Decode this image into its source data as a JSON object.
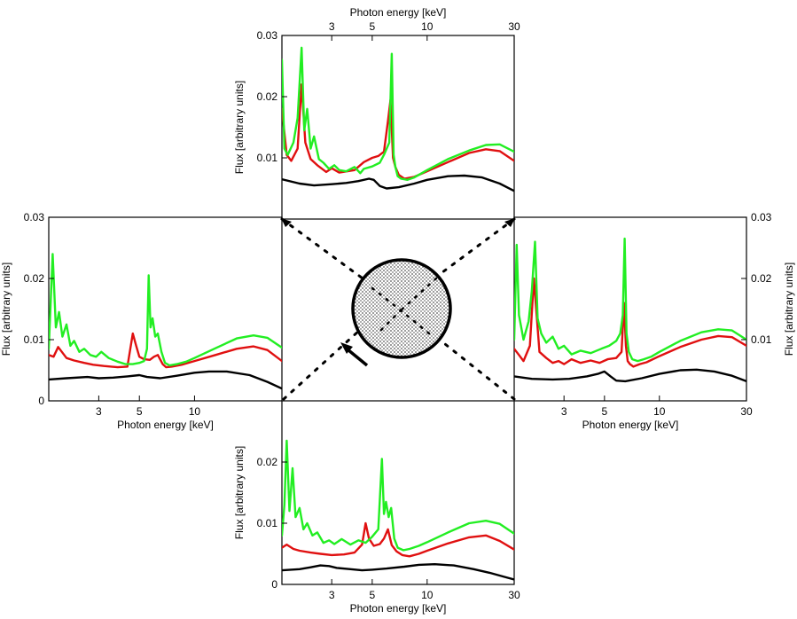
{
  "chart_data": [
    {
      "id": "top",
      "type": "line",
      "xlabel": "Photon energy [keV]",
      "ylabel": "Flux [arbitrary units]",
      "xscale": "log",
      "xlim": [
        1.6,
        30
      ],
      "ylim": [
        0,
        0.03
      ],
      "xticks": [
        3,
        5,
        10,
        30
      ],
      "xtick_labels": [
        "3",
        "5",
        "10",
        "30"
      ],
      "yticks": [
        0.01,
        0.02,
        0.03
      ],
      "ytick_labels": [
        "0.01",
        "0.02",
        "0.03"
      ],
      "xaxis_side": "top",
      "yaxis_side": "left",
      "series": [
        {
          "name": "black",
          "color": "#000000",
          "x": [
            1.6,
            2.0,
            2.4,
            3.0,
            3.6,
            4.2,
            4.8,
            5.1,
            5.5,
            6.0,
            7.0,
            8.5,
            10,
            13,
            16,
            20,
            25,
            30
          ],
          "y": [
            0.0065,
            0.0058,
            0.0055,
            0.0057,
            0.0059,
            0.0062,
            0.0066,
            0.0064,
            0.0054,
            0.005,
            0.0052,
            0.0058,
            0.0064,
            0.007,
            0.0071,
            0.0068,
            0.0058,
            0.0046
          ]
        },
        {
          "name": "red",
          "color": "#e01010",
          "x": [
            1.6,
            1.7,
            1.8,
            1.95,
            2.05,
            2.15,
            2.3,
            2.5,
            2.8,
            3.0,
            3.3,
            4.0,
            4.5,
            5.0,
            5.4,
            5.8,
            6.1,
            6.3,
            6.5,
            6.7,
            7.0,
            7.5,
            8.5,
            10,
            13,
            17,
            21,
            25,
            30
          ],
          "y": [
            0.018,
            0.0105,
            0.0095,
            0.0115,
            0.022,
            0.0125,
            0.0098,
            0.0088,
            0.0077,
            0.0083,
            0.0076,
            0.008,
            0.0093,
            0.01,
            0.0103,
            0.011,
            0.016,
            0.0195,
            0.01,
            0.0085,
            0.0072,
            0.0066,
            0.0069,
            0.0078,
            0.0093,
            0.0108,
            0.0114,
            0.0111,
            0.0095
          ]
        },
        {
          "name": "green",
          "color": "#22ee22",
          "x": [
            1.6,
            1.65,
            1.72,
            1.85,
            1.95,
            2.05,
            2.12,
            2.2,
            2.3,
            2.4,
            2.55,
            2.7,
            2.9,
            3.1,
            3.3,
            3.6,
            4.0,
            4.3,
            4.5,
            5.0,
            5.5,
            5.8,
            6.2,
            6.4,
            6.55,
            6.7,
            6.9,
            7.2,
            7.8,
            8.5,
            10,
            13,
            17,
            21,
            25,
            30
          ],
          "y": [
            0.026,
            0.0115,
            0.0105,
            0.0125,
            0.0165,
            0.028,
            0.0145,
            0.018,
            0.0115,
            0.0135,
            0.0098,
            0.0092,
            0.0082,
            0.0088,
            0.008,
            0.0078,
            0.0085,
            0.0075,
            0.0082,
            0.0086,
            0.0092,
            0.0105,
            0.0125,
            0.027,
            0.0105,
            0.0085,
            0.007,
            0.0066,
            0.0064,
            0.0068,
            0.008,
            0.0098,
            0.0112,
            0.0121,
            0.0122,
            0.011
          ]
        }
      ]
    },
    {
      "id": "left",
      "type": "line",
      "xlabel": "Photon energy [keV]",
      "ylabel": "Flux [arbitrary units]",
      "xscale": "log",
      "xlim": [
        1.6,
        30
      ],
      "ylim": [
        0,
        0.03
      ],
      "xticks": [
        3,
        5,
        10
      ],
      "xtick_labels": [
        "3",
        "5",
        "10"
      ],
      "yticks": [
        0,
        0.01,
        0.02,
        0.03
      ],
      "ytick_labels": [
        "0",
        "0.01",
        "0.02",
        "0.03"
      ],
      "xaxis_side": "bottom",
      "yaxis_side": "left",
      "series": [
        {
          "name": "black",
          "color": "#000000",
          "x": [
            1.6,
            2.0,
            2.6,
            3.0,
            3.6,
            4.3,
            5.0,
            5.5,
            6.5,
            8.0,
            10,
            12,
            15,
            20,
            25,
            30
          ],
          "y": [
            0.0035,
            0.0037,
            0.0039,
            0.0037,
            0.0038,
            0.004,
            0.0042,
            0.0039,
            0.0037,
            0.0041,
            0.0046,
            0.0048,
            0.0048,
            0.0042,
            0.0031,
            0.002
          ]
        },
        {
          "name": "red",
          "color": "#e01010",
          "x": [
            1.6,
            1.7,
            1.8,
            2.0,
            2.2,
            2.5,
            2.8,
            3.2,
            3.8,
            4.3,
            4.6,
            4.8,
            5.0,
            5.3,
            5.7,
            6.0,
            6.3,
            6.7,
            7.0,
            7.5,
            8.5,
            10,
            13,
            17,
            21,
            25,
            30
          ],
          "y": [
            0.0075,
            0.0072,
            0.0088,
            0.007,
            0.0066,
            0.0062,
            0.0059,
            0.0057,
            0.0055,
            0.0056,
            0.011,
            0.009,
            0.0072,
            0.0068,
            0.0067,
            0.0072,
            0.0075,
            0.006,
            0.0055,
            0.0056,
            0.0059,
            0.0065,
            0.0075,
            0.0085,
            0.0089,
            0.0083,
            0.0065
          ]
        },
        {
          "name": "green",
          "color": "#22ee22",
          "x": [
            1.6,
            1.68,
            1.75,
            1.82,
            1.9,
            2.0,
            2.1,
            2.2,
            2.35,
            2.5,
            2.7,
            2.9,
            3.1,
            3.4,
            3.8,
            4.2,
            4.6,
            5.0,
            5.3,
            5.5,
            5.62,
            5.75,
            5.9,
            6.1,
            6.3,
            6.6,
            6.9,
            7.3,
            8.0,
            9.0,
            10,
            13,
            17,
            21,
            25,
            30
          ],
          "y": [
            0.0085,
            0.024,
            0.012,
            0.0145,
            0.0105,
            0.0125,
            0.009,
            0.0098,
            0.008,
            0.0085,
            0.0075,
            0.0072,
            0.008,
            0.007,
            0.0064,
            0.006,
            0.006,
            0.0062,
            0.0065,
            0.0085,
            0.0205,
            0.012,
            0.0135,
            0.0105,
            0.011,
            0.008,
            0.0062,
            0.0058,
            0.006,
            0.0064,
            0.007,
            0.0086,
            0.0102,
            0.0107,
            0.0103,
            0.0087
          ]
        }
      ]
    },
    {
      "id": "right",
      "type": "line",
      "xlabel": "Photon energy [keV]",
      "ylabel": "Flux [arbitrary units]",
      "xscale": "log",
      "xlim": [
        1.6,
        30
      ],
      "ylim": [
        0,
        0.03
      ],
      "xticks": [
        3,
        5,
        10,
        30
      ],
      "xtick_labels": [
        "3",
        "5",
        "10",
        "30"
      ],
      "yticks": [
        0.01,
        0.02,
        0.03
      ],
      "ytick_labels": [
        "0.01",
        "0.02",
        "0.03"
      ],
      "xaxis_side": "bottom",
      "yaxis_side": "right",
      "series": [
        {
          "name": "black",
          "color": "#000000",
          "x": [
            1.6,
            2.0,
            2.6,
            3.2,
            4.0,
            4.6,
            5.0,
            5.4,
            5.8,
            6.5,
            8.0,
            10,
            13,
            16,
            20,
            25,
            30
          ],
          "y": [
            0.004,
            0.0036,
            0.0035,
            0.0036,
            0.004,
            0.0044,
            0.0048,
            0.004,
            0.0033,
            0.0032,
            0.0037,
            0.0044,
            0.005,
            0.0051,
            0.0048,
            0.0041,
            0.0032
          ]
        },
        {
          "name": "red",
          "color": "#e01010",
          "x": [
            1.6,
            1.7,
            1.8,
            1.95,
            2.05,
            2.2,
            2.4,
            2.6,
            2.8,
            3.0,
            3.3,
            3.7,
            4.2,
            4.7,
            5.2,
            5.8,
            6.2,
            6.4,
            6.55,
            6.7,
            6.9,
            7.2,
            7.8,
            8.5,
            10,
            13,
            17,
            21,
            25,
            30
          ],
          "y": [
            0.0085,
            0.0075,
            0.0065,
            0.009,
            0.02,
            0.008,
            0.007,
            0.0062,
            0.0065,
            0.006,
            0.0068,
            0.0062,
            0.0066,
            0.0062,
            0.0068,
            0.007,
            0.008,
            0.016,
            0.009,
            0.0065,
            0.006,
            0.0056,
            0.006,
            0.0063,
            0.0073,
            0.0088,
            0.01,
            0.0106,
            0.0104,
            0.009
          ]
        },
        {
          "name": "green",
          "color": "#22ee22",
          "x": [
            1.6,
            1.65,
            1.7,
            1.8,
            1.92,
            2.0,
            2.08,
            2.15,
            2.25,
            2.4,
            2.6,
            2.8,
            3.0,
            3.3,
            3.7,
            4.2,
            4.8,
            5.3,
            5.8,
            6.1,
            6.3,
            6.45,
            6.6,
            6.8,
            7.1,
            7.6,
            8.2,
            9.0,
            10,
            13,
            17,
            21,
            25,
            30
          ],
          "y": [
            0.01,
            0.0255,
            0.014,
            0.01,
            0.013,
            0.018,
            0.026,
            0.0135,
            0.011,
            0.0095,
            0.0105,
            0.0085,
            0.009,
            0.0076,
            0.0082,
            0.0078,
            0.0085,
            0.009,
            0.0098,
            0.011,
            0.014,
            0.0265,
            0.011,
            0.008,
            0.0068,
            0.0065,
            0.0068,
            0.0072,
            0.008,
            0.0098,
            0.0112,
            0.0117,
            0.0115,
            0.01
          ]
        }
      ]
    },
    {
      "id": "bottom",
      "type": "line",
      "xlabel": "Photon energy [keV]",
      "ylabel": "Flux [arbitrary units]",
      "xscale": "log",
      "xlim": [
        1.6,
        30
      ],
      "ylim": [
        0,
        0.03
      ],
      "xticks": [
        3,
        5,
        10,
        30
      ],
      "xtick_labels": [
        "3",
        "5",
        "10",
        "30"
      ],
      "yticks": [
        0,
        0.01,
        0.02
      ],
      "ytick_labels": [
        "0",
        "0.01",
        "0.02"
      ],
      "xaxis_side": "bottom",
      "yaxis_side": "left",
      "series": [
        {
          "name": "black",
          "color": "#000000",
          "x": [
            1.6,
            2.0,
            2.3,
            2.6,
            2.9,
            3.2,
            3.8,
            4.4,
            5.0,
            6.0,
            7.5,
            9.0,
            11,
            14,
            18,
            22,
            26,
            30
          ],
          "y": [
            0.0023,
            0.0025,
            0.0028,
            0.0031,
            0.003,
            0.0027,
            0.0025,
            0.0023,
            0.0024,
            0.0026,
            0.0029,
            0.0032,
            0.0033,
            0.0031,
            0.0025,
            0.0019,
            0.0013,
            0.0008
          ]
        },
        {
          "name": "red",
          "color": "#e01010",
          "x": [
            1.6,
            1.7,
            1.85,
            2.0,
            2.3,
            2.6,
            3.0,
            3.5,
            4.0,
            4.4,
            4.6,
            4.8,
            5.1,
            5.5,
            5.8,
            6.1,
            6.4,
            6.8,
            7.3,
            8.0,
            9.0,
            10,
            13,
            17,
            21,
            25,
            30
          ],
          "y": [
            0.006,
            0.0065,
            0.0058,
            0.0055,
            0.0052,
            0.005,
            0.0048,
            0.0049,
            0.0052,
            0.0065,
            0.01,
            0.0075,
            0.0063,
            0.0066,
            0.0075,
            0.009,
            0.0064,
            0.0054,
            0.0048,
            0.0046,
            0.005,
            0.0055,
            0.0067,
            0.0077,
            0.008,
            0.0071,
            0.0057
          ]
        },
        {
          "name": "green",
          "color": "#22ee22",
          "x": [
            1.6,
            1.65,
            1.7,
            1.76,
            1.83,
            1.9,
            2.0,
            2.1,
            2.2,
            2.35,
            2.5,
            2.7,
            2.9,
            3.1,
            3.4,
            3.8,
            4.2,
            4.6,
            5.0,
            5.4,
            5.65,
            5.8,
            5.95,
            6.15,
            6.35,
            6.6,
            6.9,
            7.4,
            8.0,
            9.0,
            10,
            13,
            17,
            21,
            25,
            30
          ],
          "y": [
            0.008,
            0.013,
            0.0235,
            0.012,
            0.019,
            0.011,
            0.0125,
            0.009,
            0.01,
            0.008,
            0.0085,
            0.0068,
            0.0072,
            0.0066,
            0.0074,
            0.0065,
            0.0072,
            0.0068,
            0.0078,
            0.009,
            0.0205,
            0.0115,
            0.0135,
            0.011,
            0.0125,
            0.0075,
            0.006,
            0.0056,
            0.0058,
            0.0063,
            0.0069,
            0.0085,
            0.01,
            0.0104,
            0.0099,
            0.0083
          ]
        }
      ]
    }
  ],
  "center_diagram": {
    "description_arrow": "incident-direction",
    "colors": {
      "disk_fill": "#bcbcbc",
      "outline": "#000000"
    }
  }
}
